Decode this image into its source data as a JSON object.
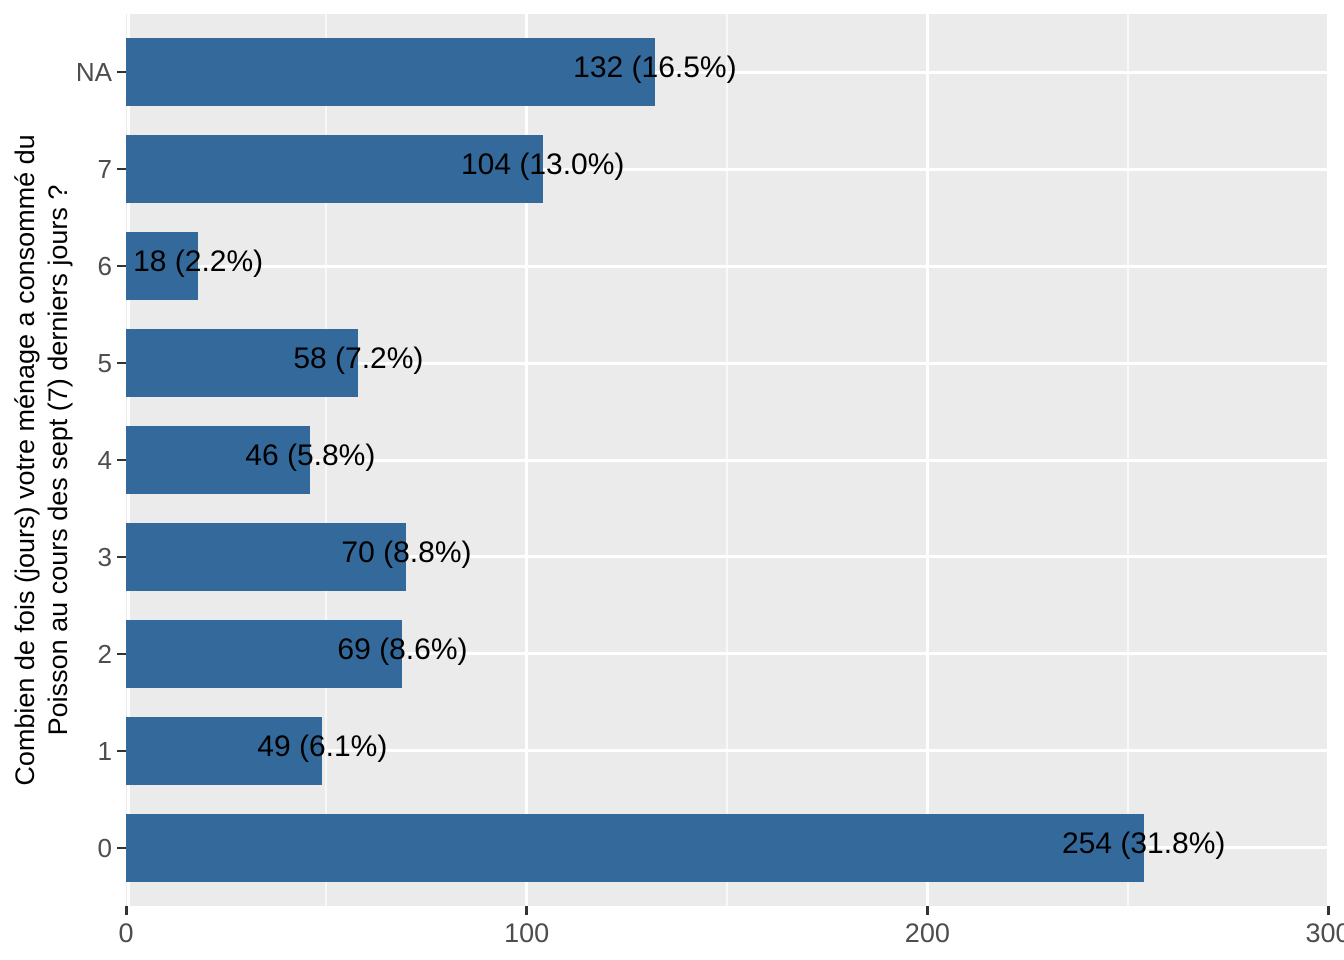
{
  "chart_data": {
    "type": "bar",
    "orientation": "horizontal",
    "title": "",
    "xlabel": "",
    "ylabel": "Combien de fois (jours) votre ménage a consommé du Poisson au cours des sept (7) derniers jours ?",
    "ylabel_lines": [
      "Combien de fois (jours) votre ménage a consommé du",
      "Poisson au cours des sept (7) derniers jours ?"
    ],
    "categories": [
      "NA",
      "7",
      "6",
      "5",
      "4",
      "3",
      "2",
      "1",
      "0"
    ],
    "values": [
      132,
      104,
      18,
      58,
      46,
      70,
      69,
      49,
      254
    ],
    "bar_labels": [
      "132 (16.5%)",
      "104 (13.0%)",
      "18 (2.2%)",
      "58 (7.2%)",
      "46 (5.8%)",
      "70 (8.8%)",
      "69 (8.6%)",
      "49 (6.1%)",
      "254 (31.8%)"
    ],
    "x_axis": {
      "tick_labels": [
        "0",
        "100",
        "200",
        "300"
      ],
      "tick_values": [
        0,
        100,
        200,
        300
      ],
      "minor_tick_values": [
        50,
        150,
        250
      ],
      "range": [
        0,
        300
      ]
    },
    "legend_position": "none",
    "grid": {
      "major": "on",
      "minor": "on"
    },
    "style": {
      "bar_color": "#33699B",
      "panel_background": "#EBEBEB",
      "grid_major_color": "#FFFFFF",
      "grid_minor_color": "rgba(255,255,255,0.65)",
      "axis_text_color": "#4D4D4D",
      "axis_title_color": "#000000",
      "bar_label_color": "#000000",
      "tick_mark_color": "#333333"
    }
  }
}
